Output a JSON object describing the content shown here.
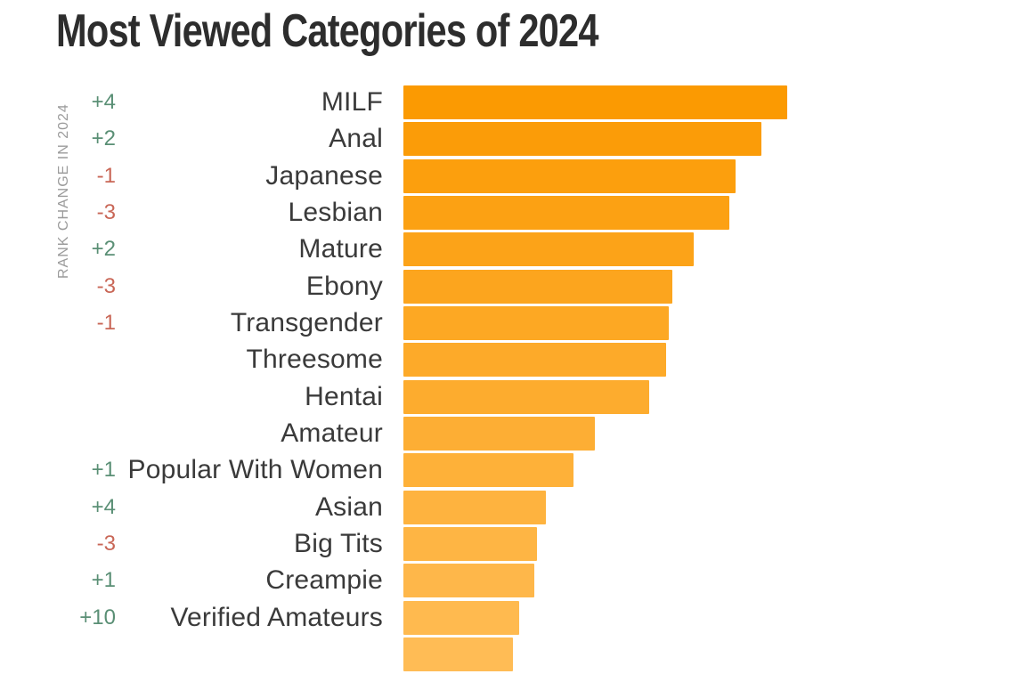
{
  "title": "Most Viewed Categories of 2024",
  "chart_data": {
    "type": "bar",
    "orientation": "horizontal",
    "title": "Most Viewed Categories of 2024",
    "y_axis_label": "RANK CHANGE IN 2024",
    "x_axis": "none shown; values estimated as percent of longest bar",
    "xlim": [
      0,
      100
    ],
    "grid": false,
    "legend": false,
    "note": "a 16th bar is partially cut off at the bottom edge of the viewport",
    "rows": [
      {
        "category": "MILF",
        "rank_change": "+4",
        "value": 100
      },
      {
        "category": "Anal",
        "rank_change": "+2",
        "value": 93.3
      },
      {
        "category": "Japanese",
        "rank_change": "-1",
        "value": 86.5
      },
      {
        "category": "Lesbian",
        "rank_change": "-3",
        "value": 84.9
      },
      {
        "category": "Mature",
        "rank_change": "+2",
        "value": 75.6
      },
      {
        "category": "Ebony",
        "rank_change": "-3",
        "value": 70.1
      },
      {
        "category": "Transgender",
        "rank_change": "-1",
        "value": 69.1
      },
      {
        "category": "Threesome",
        "rank_change": "",
        "value": 68.4
      },
      {
        "category": "Hentai",
        "rank_change": "",
        "value": 64.0
      },
      {
        "category": "Amateur",
        "rank_change": "",
        "value": 49.9
      },
      {
        "category": "Popular With Women",
        "rank_change": "+1",
        "value": 44.3
      },
      {
        "category": "Asian",
        "rank_change": "+4",
        "value": 37.1
      },
      {
        "category": "Big Tits",
        "rank_change": "-3",
        "value": 34.8
      },
      {
        "category": "Creampie",
        "rank_change": "+1",
        "value": 34.1
      },
      {
        "category": "Verified Amateurs",
        "rank_change": "+10",
        "value": 30.2
      },
      {
        "category": "",
        "rank_change": "",
        "value": 28.5
      }
    ],
    "colors": {
      "bar_top": "#FB9A02",
      "bar_bottom": "#FFBC55",
      "positive": "#5A8F75",
      "negative": "#C96757",
      "category_text": "#3A3A3A",
      "title_text": "#2D2D2D",
      "axis_label_text": "#9B9B9B",
      "background": "#FFFFFF"
    }
  }
}
